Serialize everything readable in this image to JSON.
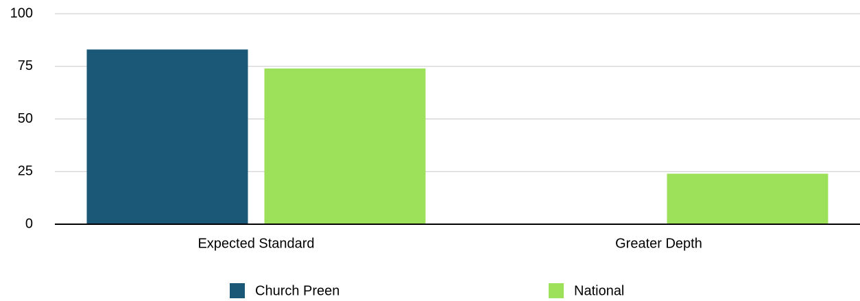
{
  "chart_data": {
    "type": "bar",
    "categories": [
      "Expected Standard",
      "Greater Depth"
    ],
    "series": [
      {
        "name": "Church Preen",
        "color": "#1b5878",
        "values": [
          83,
          0
        ]
      },
      {
        "name": "National",
        "color": "#9de05a",
        "values": [
          74,
          24
        ]
      }
    ],
    "ylim": [
      0,
      100
    ],
    "yticks": [
      0,
      25,
      50,
      75,
      100
    ],
    "grid": true,
    "legend": "bottom"
  }
}
